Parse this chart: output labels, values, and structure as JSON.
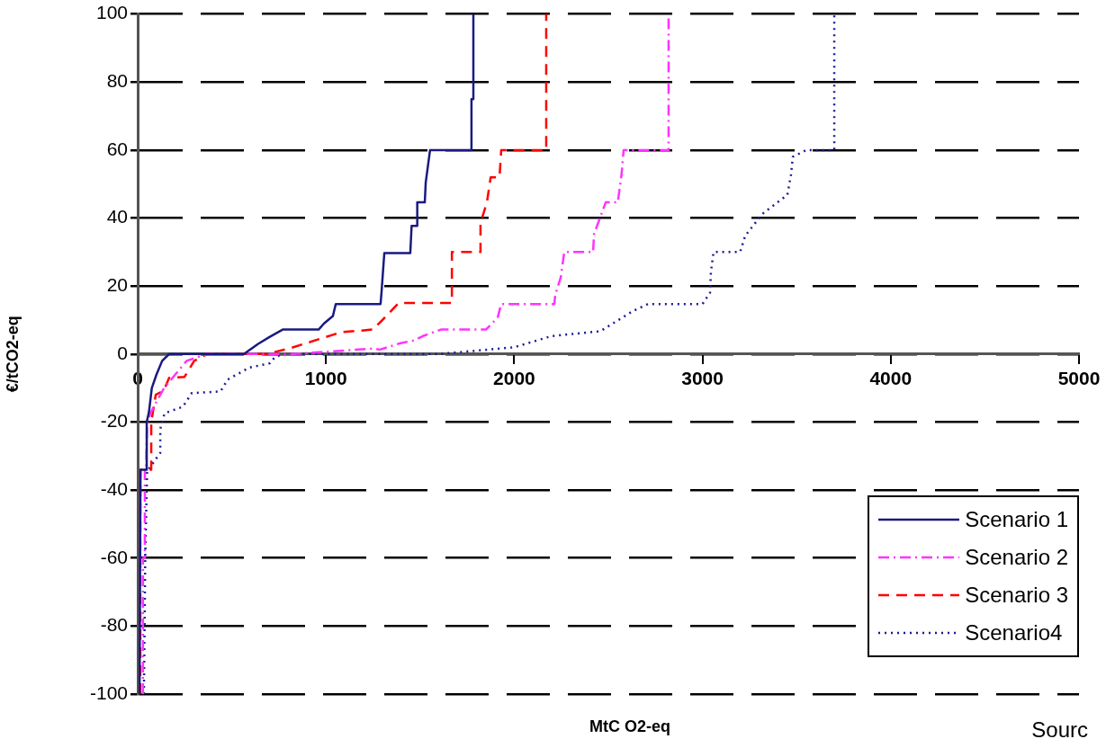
{
  "chart_data": {
    "type": "line",
    "xlabel": "MtC O2-eq",
    "ylabel": "€/tCO2-eq",
    "annotations": [
      "Sourc"
    ],
    "xlim": [
      0,
      5000
    ],
    "xticks": [
      0,
      1000,
      2000,
      3000,
      4000,
      5000
    ],
    "ylim": [
      -100,
      100
    ],
    "yticks": [
      -100,
      -80,
      -60,
      -40,
      -20,
      0,
      20,
      40,
      60,
      80,
      100
    ],
    "grid": "y",
    "legend": "bottom right",
    "marker": "none",
    "series": [
      {
        "name": "Scenario 1",
        "color": "#1a1a80",
        "line_style": "solid",
        "x": [
          10,
          15,
          48,
          48,
          60,
          75,
          100,
          130,
          167,
          564,
          640,
          700,
          770,
          961,
          990,
          1037,
          1052,
          1290,
          1295,
          1310,
          1448,
          1455,
          1482,
          1485,
          1525,
          1530,
          1553,
          1773,
          1773,
          1783,
          1783
        ],
        "values": [
          -100,
          -34,
          -34,
          -20,
          -17,
          -10,
          -6,
          -2,
          0,
          0,
          3,
          5,
          7.2,
          7.2,
          9,
          11.2,
          14.7,
          14.7,
          18,
          29.7,
          29.7,
          37.7,
          37.7,
          44.6,
          44.6,
          50.5,
          60,
          60,
          75,
          75,
          100
        ]
      },
      {
        "name": "Scenario 2",
        "color": "#ff33ff",
        "line_style": "dashdot",
        "x": [
          28,
          28,
          38,
          38,
          45,
          50,
          72,
          100,
          140,
          200,
          230,
          260,
          368,
          822,
          1248,
          1286,
          1396,
          1467,
          1515,
          1611,
          1850,
          1912,
          1931,
          2213,
          2218,
          2247,
          2266,
          2419,
          2424,
          2486,
          2550,
          2570,
          2581,
          2820,
          2820
        ],
        "values": [
          -100,
          -60,
          -60,
          -34,
          -34,
          -20,
          -17,
          -14,
          -10,
          -6,
          -4,
          -2,
          0,
          0,
          1.6,
          1.3,
          3.2,
          4,
          5.3,
          7.2,
          7.2,
          10.7,
          14.7,
          14.7,
          17.4,
          22.5,
          30,
          30,
          35.3,
          44.6,
          44.6,
          52.7,
          60,
          60,
          100
        ]
      },
      {
        "name": "Scenario 3",
        "color": "#ff0000",
        "line_style": "dashed",
        "x": [
          14,
          14,
          72,
          72,
          81,
          96,
          139,
          167,
          249,
          300,
          368,
          684,
          803,
          1080,
          1248,
          1300,
          1386,
          1669,
          1669,
          1745,
          1821,
          1821,
          1855,
          1875,
          1922,
          1931,
          2170,
          2170
        ],
        "values": [
          -100,
          -34,
          -34,
          -20,
          -17,
          -12,
          -10.7,
          -7,
          -6.7,
          -2,
          0,
          0,
          1.6,
          6.4,
          7.2,
          10,
          15,
          15,
          30,
          30,
          30,
          38.5,
          44.6,
          52,
          52,
          60,
          60,
          100
        ]
      },
      {
        "name": "Scenario4",
        "color": "#1a1a99",
        "line_style": "dotted",
        "x": [
          33,
          40,
          50,
          57,
          120,
          120,
          143,
          240,
          287,
          440,
          478,
          593,
          703,
          727,
          770,
          1592,
          1760,
          2000,
          2199,
          2457,
          2629,
          2710,
          3000,
          3040,
          3045,
          3059,
          3200,
          3227,
          3318,
          3451,
          3470,
          3480,
          3552,
          3700,
          3700
        ],
        "values": [
          -100,
          -60,
          -34,
          -34,
          -29,
          -22,
          -17.4,
          -15.5,
          -11.5,
          -11,
          -7.5,
          -4,
          -2.7,
          -1,
          0,
          0,
          0.8,
          2,
          5.3,
          6.7,
          12.6,
          14.7,
          14.7,
          18,
          24.3,
          30,
          30,
          34.8,
          41.2,
          46.8,
          52.7,
          58,
          60,
          60,
          100
        ]
      }
    ]
  }
}
